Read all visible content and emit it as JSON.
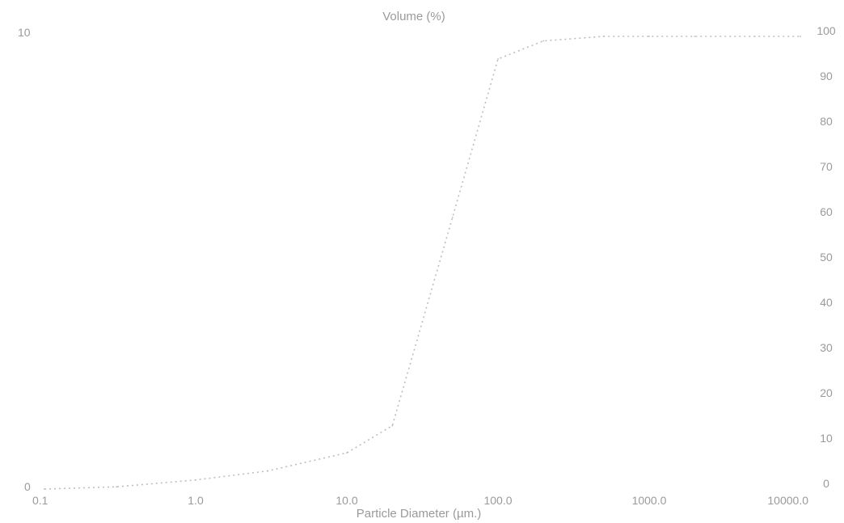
{
  "chart_data": {
    "type": "line",
    "title": "Volume (%)",
    "xlabel": "Particle Diameter (µm.)",
    "ylabel": "",
    "x_scale": "log",
    "xlim": [
      0.1,
      10000
    ],
    "x_ticks": [
      "0.1",
      "1.0",
      "10.0",
      "100.0",
      "1000.0",
      "10000.0"
    ],
    "x_tick_values": [
      0.1,
      1,
      10,
      100,
      1000,
      10000
    ],
    "y_left_ticks": [
      "0",
      "10"
    ],
    "y_left_tick_values": [
      0,
      10
    ],
    "ylim_left": [
      0,
      10
    ],
    "y_right_ticks": [
      "0",
      "10",
      "20",
      "30",
      "40",
      "50",
      "60",
      "70",
      "80",
      "90",
      "100"
    ],
    "y_right_tick_values": [
      0,
      10,
      20,
      30,
      40,
      50,
      60,
      70,
      80,
      90,
      100
    ],
    "ylim_right": [
      0,
      100
    ],
    "grid": false,
    "series": [
      {
        "axis": "right",
        "style": "dotted",
        "x": [
          0.1,
          0.3,
          1,
          3,
          10,
          20,
          50,
          100,
          200,
          500,
          1000,
          2000,
          5000,
          10000
        ],
        "values": [
          0,
          0.5,
          2,
          4,
          8,
          14,
          60,
          95,
          99,
          100,
          100,
          100,
          100,
          100
        ]
      }
    ],
    "colors": {
      "text": "#9a9a9a",
      "curve": "#bdbdbd"
    }
  }
}
